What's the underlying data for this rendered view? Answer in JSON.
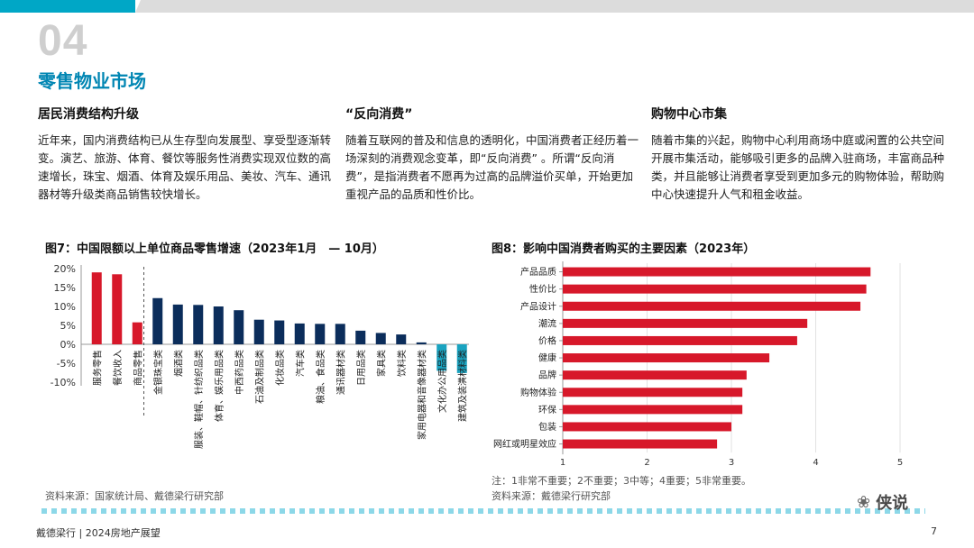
{
  "header": {
    "section_number": "04",
    "section_title": "零售物业市场"
  },
  "columns": [
    {
      "heading": "居民消费结构升级",
      "body": "近年来，国内消费结构已从生存型向发展型、享受型逐渐转变。演艺、旅游、体育、餐饮等服务性消费实现双位数的高速增长，珠宝、烟酒、体育及娱乐用品、美妆、汽车、通讯器材等升级类商品销售较快增长。"
    },
    {
      "heading": "“反向消费”",
      "body": "随着互联网的普及和信息的透明化，中国消费者正经历着一场深刻的消费观念变革，即“反向消费” 。所谓“反向消费”，是指消费者不愿再为过高的品牌溢价买单，开始更加重视产品的品质和性价比。"
    },
    {
      "heading": "购物中心市集",
      "body": "随着市集的兴起，购物中心利用商场中庭或闲置的公共空间开展市集活动，能够吸引更多的品牌入驻商场，丰富商品种类，并且能够让消费者享受到更加多元的购物体验，帮助购中心快速提升人气和租金收益。"
    }
  ],
  "figure7": {
    "title": "图7：中国限额以上单位商品零售增速（2023年1月　— 10月）",
    "source": "资料来源：国家统计局、戴德梁行研究部"
  },
  "figure8": {
    "title": "图8：影响中国消费者购买的主要因素（2023年）",
    "note": "注：1非常不重要；2不重要；3中等；4重要；5非常重要。",
    "source": "资料来源：戴德梁行研究部"
  },
  "footer": {
    "left": "戴德梁行 | 2024房地产展望",
    "page": "7"
  },
  "watermark": {
    "icon": "wechat-icon",
    "text": "侠说"
  },
  "colors": {
    "red": "#d7182a",
    "navy": "#0b2d5b",
    "teal": "#1aa3c0",
    "accent": "#0086b3"
  },
  "chart_data": [
    {
      "type": "bar",
      "orientation": "vertical",
      "categories": [
        "服务零售",
        "餐饮收入",
        "商品零售",
        "金银珠宝类",
        "烟酒类",
        "服装、鞋帽、针纺织品类",
        "体育、娱乐用品类",
        "中西药品类",
        "石油及制品类",
        "化妆品类",
        "汽车类",
        "粮油、食品类",
        "通讯器材类",
        "日用品类",
        "家具类",
        "饮料类",
        "家用电器和音像器材类",
        "文化办公用品类",
        "建筑及装潢材料类"
      ],
      "values": [
        19.0,
        18.5,
        5.8,
        12.2,
        10.5,
        10.4,
        10.0,
        9.0,
        6.5,
        6.3,
        5.5,
        5.4,
        5.4,
        3.6,
        3.0,
        2.6,
        0.5,
        -7.0,
        -7.6
      ],
      "bar_colors": [
        "#d7182a",
        "#d7182a",
        "#d7182a",
        "#0b2d5b",
        "#0b2d5b",
        "#0b2d5b",
        "#0b2d5b",
        "#0b2d5b",
        "#0b2d5b",
        "#0b2d5b",
        "#0b2d5b",
        "#0b2d5b",
        "#0b2d5b",
        "#0b2d5b",
        "#0b2d5b",
        "#0b2d5b",
        "#0b2d5b",
        "#1aa3c0",
        "#1aa3c0"
      ],
      "y_ticks": [
        "20%",
        "15%",
        "10%",
        "5%",
        "0%",
        "-5%",
        "-10%"
      ],
      "ylim": [
        -10,
        20
      ],
      "divider_after_index": 2
    },
    {
      "type": "bar",
      "orientation": "horizontal",
      "categories": [
        "产品品质",
        "性价比",
        "产品设计",
        "潮流",
        "价格",
        "健康",
        "品牌",
        "购物体验",
        "环保",
        "包装",
        "网红或明星效应"
      ],
      "values": [
        4.65,
        4.6,
        4.53,
        3.9,
        3.78,
        3.45,
        3.18,
        3.13,
        3.13,
        3.0,
        2.83
      ],
      "x_ticks": [
        "1",
        "2",
        "3",
        "4",
        "5"
      ],
      "xlim": [
        1,
        5
      ]
    }
  ]
}
